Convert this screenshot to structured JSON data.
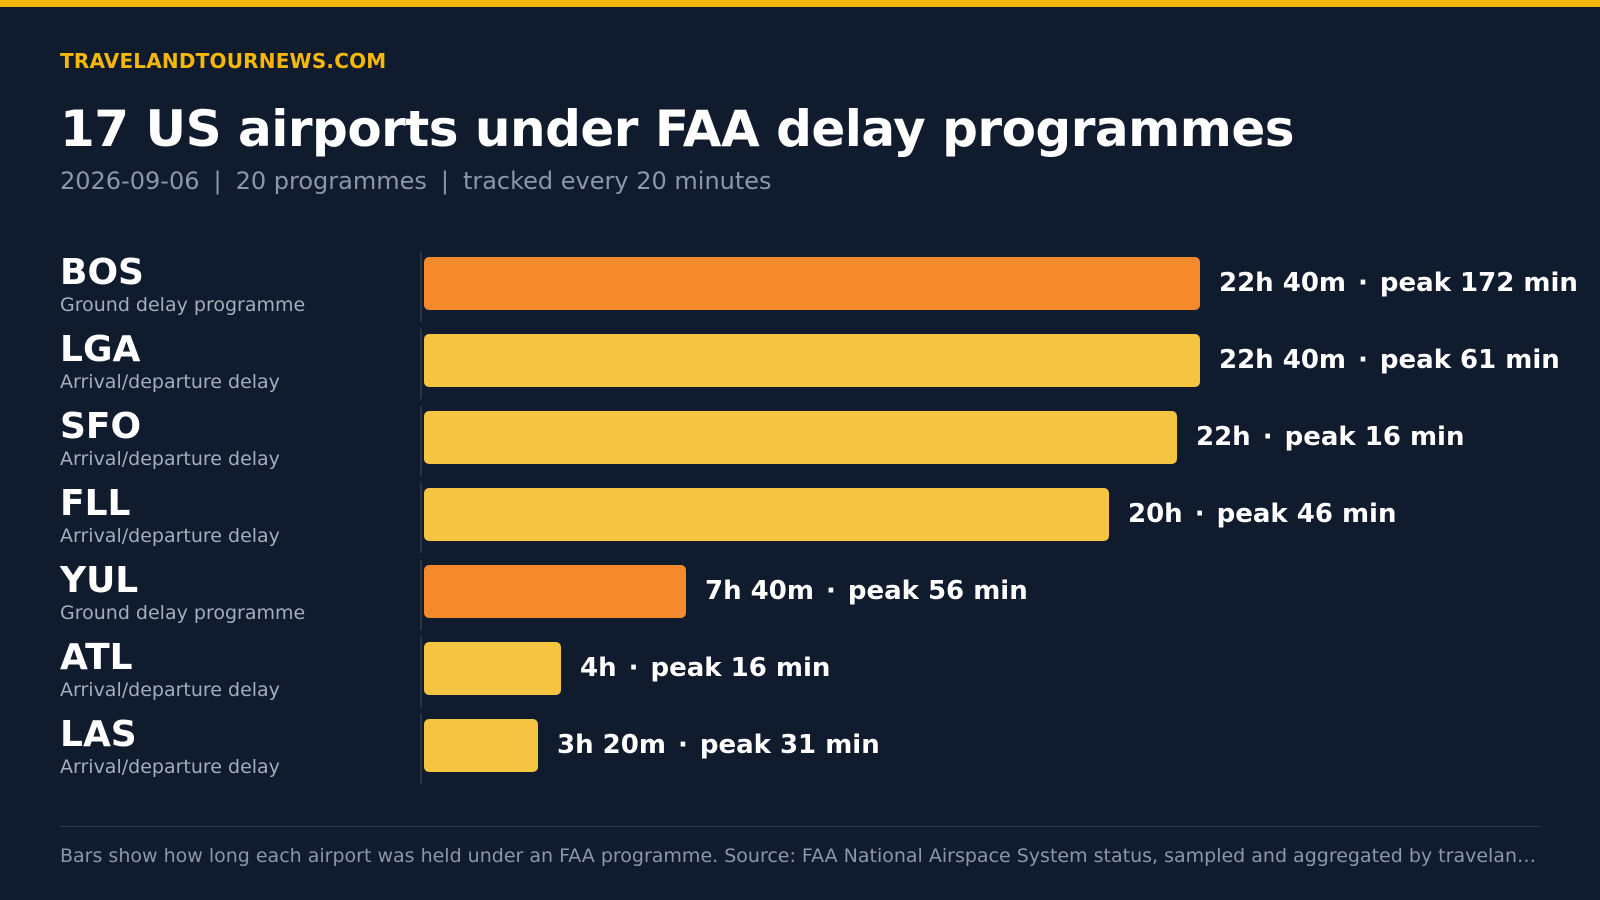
{
  "brand": "TRAVELANDTOURNEWS.COM",
  "title": "17 US airports under FAA delay programmes",
  "subtitle": {
    "date": "2026-09-06",
    "programmes": "20 programmes",
    "tracking": "tracked every 20 minutes",
    "separator": "|"
  },
  "footnote": "Bars show how long each airport was held under an FAA programme. Source: FAA National Airspace System status, sampled and aggregated by travelandtour…",
  "colors": {
    "accent": "#f5b80a",
    "ground_delay": "#f58a2d",
    "arrival_departure": "#f5c542"
  },
  "chart_data": {
    "type": "bar",
    "orientation": "horizontal",
    "unit": "minutes",
    "xlim": [
      0,
      1360
    ],
    "categories": [
      "BOS",
      "LGA",
      "SFO",
      "FLL",
      "YUL",
      "ATL",
      "LAS"
    ],
    "rows": [
      {
        "code": "BOS",
        "type": "Ground delay programme",
        "kind": "ground_delay",
        "duration_min": 1360,
        "duration_label": "22h 40m",
        "peak_label": "peak 172 min",
        "peak_min": 172
      },
      {
        "code": "LGA",
        "type": "Arrival/departure delay",
        "kind": "arrival_departure",
        "duration_min": 1360,
        "duration_label": "22h 40m",
        "peak_label": "peak 61 min",
        "peak_min": 61
      },
      {
        "code": "SFO",
        "type": "Arrival/departure delay",
        "kind": "arrival_departure",
        "duration_min": 1320,
        "duration_label": "22h",
        "peak_label": "peak 16 min",
        "peak_min": 16
      },
      {
        "code": "FLL",
        "type": "Arrival/departure delay",
        "kind": "arrival_departure",
        "duration_min": 1200,
        "duration_label": "20h",
        "peak_label": "peak 46 min",
        "peak_min": 46
      },
      {
        "code": "YUL",
        "type": "Ground delay programme",
        "kind": "ground_delay",
        "duration_min": 460,
        "duration_label": "7h 40m",
        "peak_label": "peak 56 min",
        "peak_min": 56
      },
      {
        "code": "ATL",
        "type": "Arrival/departure delay",
        "kind": "arrival_departure",
        "duration_min": 240,
        "duration_label": "4h",
        "peak_label": "peak 16 min",
        "peak_min": 16
      },
      {
        "code": "LAS",
        "type": "Arrival/departure delay",
        "kind": "arrival_departure",
        "duration_min": 200,
        "duration_label": "3h 20m",
        "peak_label": "peak 31 min",
        "peak_min": 31
      }
    ]
  }
}
